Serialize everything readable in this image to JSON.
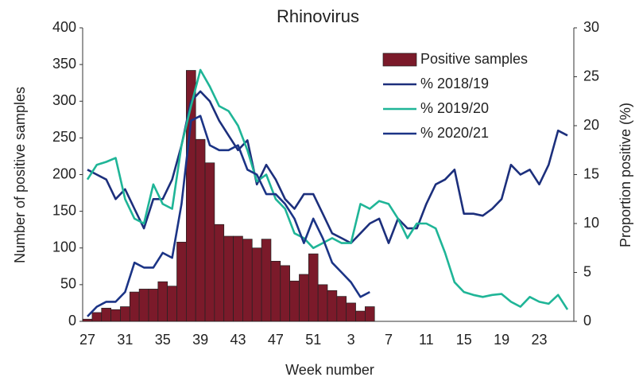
{
  "chart_data": {
    "type": "bar",
    "title": "Rhinovirus",
    "x_label": "Week number",
    "y_label": "Number of positive samples",
    "y2_label": "Proportion positive (%)",
    "categories": [
      "27",
      null,
      null,
      null,
      "31",
      null,
      null,
      null,
      "35",
      null,
      null,
      null,
      "39",
      null,
      null,
      null,
      "43",
      null,
      null,
      null,
      "47",
      null,
      null,
      null,
      "51",
      null,
      null,
      null,
      "3",
      null,
      null,
      null,
      "7",
      null,
      null,
      null,
      "11",
      null,
      null,
      null,
      "15",
      null,
      null,
      null,
      "19",
      null,
      null,
      null,
      "23",
      null,
      null,
      null
    ],
    "ylim": [
      0,
      400
    ],
    "yticks": [
      0,
      50,
      100,
      150,
      200,
      250,
      300,
      350,
      400
    ],
    "y2lim": [
      0,
      30
    ],
    "y2ticks": [
      0,
      5,
      10,
      15,
      20,
      25,
      30
    ],
    "legend": "upper right",
    "series": [
      {
        "name": "Positive samples",
        "type": "bar",
        "color": "#7b1a2a",
        "values": [
          3,
          12,
          18,
          16,
          20,
          40,
          44,
          44,
          54,
          48,
          108,
          342,
          248,
          216,
          132,
          116,
          116,
          112,
          100,
          112,
          82,
          76,
          55,
          64,
          92,
          50,
          42,
          34,
          25,
          14,
          20,
          null,
          null,
          null,
          null,
          null,
          null,
          null,
          null,
          null,
          null,
          null,
          null,
          null,
          null,
          null,
          null,
          null,
          null,
          null,
          null,
          null
        ]
      },
      {
        "name": "% 2018/19",
        "type": "line",
        "axis": "y2",
        "color": "#1c2f7c",
        "values": [
          15.5,
          15,
          14.5,
          12.5,
          13.5,
          11.5,
          9.5,
          12.5,
          12.5,
          14.5,
          18,
          22.5,
          23.5,
          22.5,
          20.5,
          19,
          17.5,
          18.5,
          14,
          16,
          14.5,
          12.5,
          11.5,
          13,
          13,
          11,
          9,
          8.5,
          8,
          9,
          10,
          10.5,
          8,
          10.5,
          9.5,
          9.5,
          12,
          14,
          14.5,
          15.5,
          11,
          11,
          10.8,
          11.5,
          12.5,
          16,
          15,
          15.5,
          14,
          16,
          19.5,
          19
        ]
      },
      {
        "name": "% 2019/20",
        "type": "line",
        "axis": "y2",
        "color": "#1fb597",
        "values": [
          14.5,
          16,
          16.3,
          16.7,
          12.5,
          10.5,
          10,
          14,
          12,
          11.5,
          18,
          22,
          25.7,
          24,
          22,
          21.5,
          20,
          17.5,
          14.3,
          15,
          12.5,
          11.5,
          9,
          8.5,
          7.5,
          8,
          8.5,
          8,
          8,
          12,
          11.5,
          12.3,
          12,
          10.5,
          8.5,
          10,
          10,
          9.5,
          7,
          4,
          3,
          2.7,
          2.5,
          2.7,
          2.8,
          2,
          1.5,
          2.5,
          2,
          1.8,
          2.7,
          1.2
        ]
      },
      {
        "name": "% 2020/21",
        "type": "line",
        "axis": "y2",
        "color": "#1b3486",
        "values": [
          0.5,
          1.5,
          2,
          2,
          3,
          6,
          5.5,
          5.5,
          7,
          6.5,
          12,
          20.5,
          21,
          18,
          17.5,
          17.5,
          18,
          15.5,
          15,
          13,
          13,
          12,
          10.5,
          8,
          10.5,
          8.5,
          6,
          5,
          4,
          2.5,
          3,
          null,
          null,
          null,
          null,
          null,
          null,
          null,
          null,
          null,
          null,
          null,
          null,
          null,
          null,
          null,
          null,
          null,
          null,
          null,
          null,
          null
        ]
      }
    ]
  }
}
